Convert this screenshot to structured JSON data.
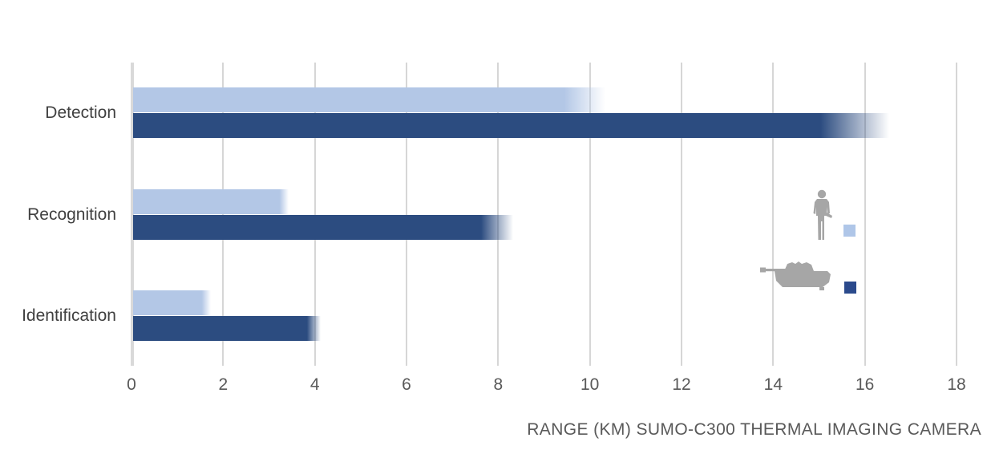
{
  "chart_data": {
    "type": "bar",
    "orientation": "horizontal",
    "title": "RANGE (KM) SUMO-C300 THERMAL IMAGING CAMERA",
    "xlabel": "RANGE (KM) SUMO-C300 THERMAL IMAGING CAMERA",
    "categories": [
      "Detection",
      "Recognition",
      "Identification"
    ],
    "series": [
      {
        "name": "person",
        "legend_icon": "soldier-silhouette",
        "color": "#B3C7E6",
        "legend_color": "#AFC6E8",
        "values": [
          10.3,
          3.4,
          1.7
        ],
        "solid_values": [
          9.4,
          3.2,
          1.5
        ]
      },
      {
        "name": "vehicle",
        "legend_icon": "tank-silhouette",
        "color": "#2C4C80",
        "legend_color": "#2B4A8C",
        "values": [
          16.5,
          8.3,
          4.1
        ],
        "solid_values": [
          15.0,
          7.6,
          3.8
        ]
      }
    ],
    "x_ticks": [
      0,
      2,
      4,
      6,
      8,
      10,
      12,
      14,
      16,
      18
    ],
    "xlim": [
      0,
      18
    ],
    "grid": "vertical-only",
    "legend_position": "right-middle",
    "bar_style": "bars fade to transparent at their right ends",
    "icon_color": "#a6a6a6",
    "gridline_color": "#d6d6d6",
    "axis_line_color": "#d9d9d9",
    "category_label_color": "#404040",
    "tick_label_color": "#595959"
  }
}
